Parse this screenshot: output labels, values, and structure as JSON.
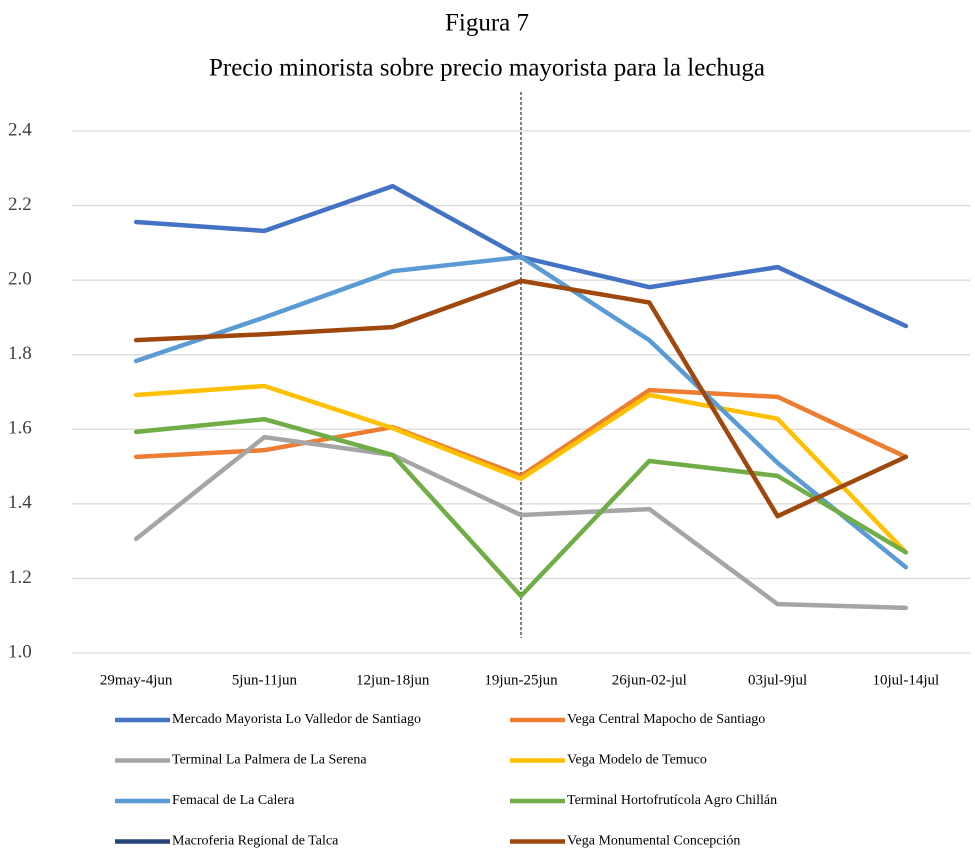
{
  "chart_data": {
    "type": "line",
    "title": "Figura 7",
    "subtitle": "Precio minorista sobre precio mayorista para la lechuga",
    "categories": [
      "29may-4jun",
      "5jun-11jun",
      "12jun-18jun",
      "19jun-25jun",
      "26jun-02-jul",
      "03jul-9jul",
      "10jul-14jul"
    ],
    "series": [
      {
        "name": "Mercado Mayorista Lo Valledor de Santiago",
        "color": "#4472c4",
        "values": [
          2.156,
          2.132,
          2.252,
          2.062,
          1.981,
          2.035,
          1.877
        ]
      },
      {
        "name": "Vega Central Mapocho de Santiago",
        "color": "#ed7d31",
        "values": [
          1.526,
          1.544,
          1.606,
          1.475,
          1.705,
          1.687,
          1.526
        ]
      },
      {
        "name": "Terminal La Palmera de La Serena",
        "color": "#a5a5a5",
        "values": [
          1.306,
          1.579,
          1.531,
          1.37,
          1.386,
          1.131,
          1.121
        ]
      },
      {
        "name": "Vega Modelo de Temuco",
        "color": "#ffc000",
        "values": [
          1.692,
          1.716,
          1.603,
          1.467,
          1.692,
          1.628,
          1.27
        ]
      },
      {
        "name": "Femacal de La Calera",
        "color": "#5b9bd5",
        "values": [
          1.783,
          1.9,
          2.024,
          2.062,
          1.839,
          1.51,
          1.23
        ]
      },
      {
        "name": "Terminal Hortofrutícola Agro Chillán",
        "color": "#70ad47",
        "values": [
          1.593,
          1.627,
          1.531,
          1.153,
          1.515,
          1.475,
          1.27
        ]
      },
      {
        "name": "Macroferia Regional de Talca",
        "color": "#264478",
        "values": [
          null,
          null,
          null,
          null,
          null,
          null,
          null
        ]
      },
      {
        "name": "Vega Monumental Concepción",
        "color": "#9e480e",
        "values": [
          1.839,
          1.855,
          1.874,
          1.998,
          1.94,
          1.367,
          1.526
        ]
      }
    ],
    "ylim": [
      1,
      2.4
    ],
    "yticks": [
      {
        "value": 1,
        "label": "1.0"
      },
      1.2,
      1.4,
      1.6,
      1.8,
      {
        "value": 2,
        "label": "2.0"
      },
      2.2,
      2.4
    ],
    "grid": true
  }
}
